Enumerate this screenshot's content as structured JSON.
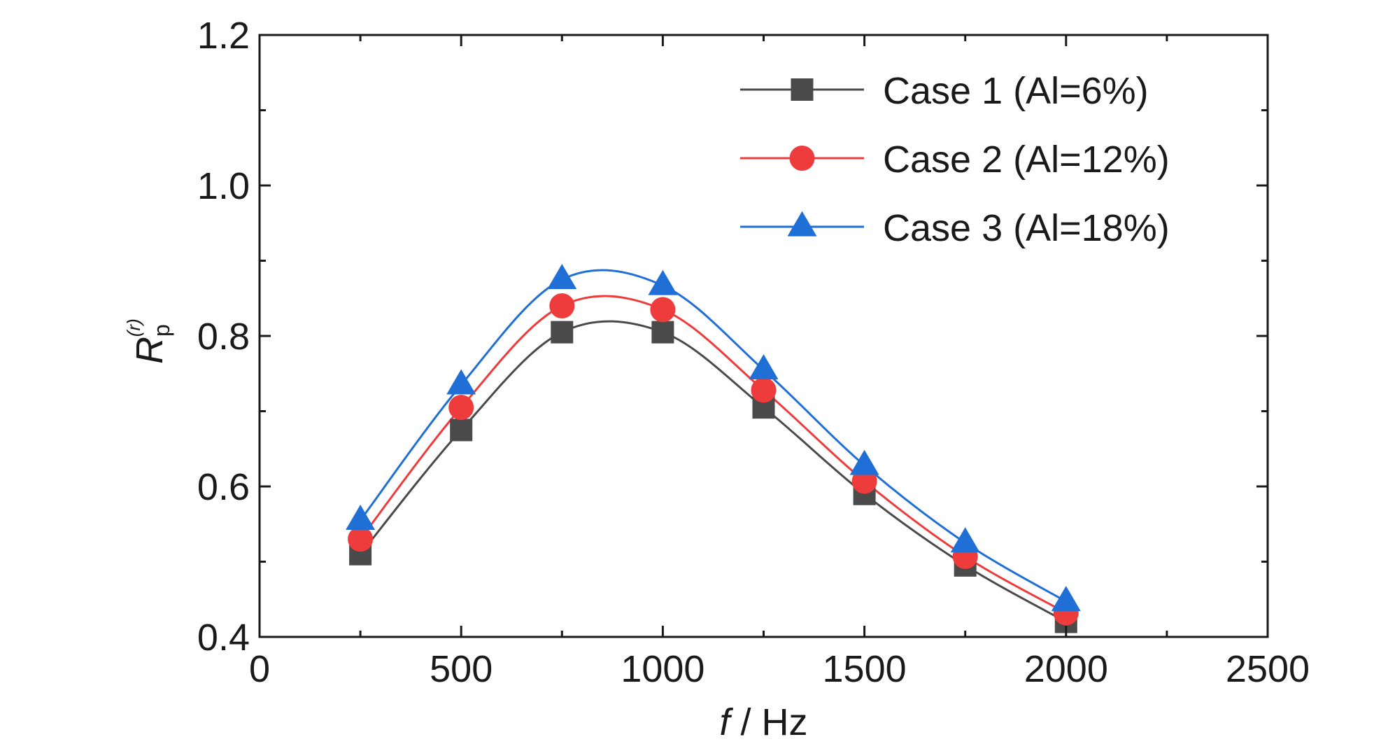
{
  "chart_data": {
    "type": "line",
    "title": "",
    "xlabel": {
      "var": "f",
      "unit": " / Hz"
    },
    "ylabel": {
      "main": "R",
      "sub": "p",
      "sup": "(r)"
    },
    "xlim": [
      0,
      2500
    ],
    "ylim": [
      0.4,
      1.2
    ],
    "xticks": [
      0,
      500,
      1000,
      1500,
      2000,
      2500
    ],
    "xtick_labels": [
      "0",
      "500",
      "1000",
      "1500",
      "2000",
      "2500"
    ],
    "yticks": [
      0.4,
      0.6,
      0.8,
      1.0,
      1.2
    ],
    "ytick_labels": [
      "0.4",
      "0.6",
      "0.8",
      "1.0",
      "1.2"
    ],
    "grid": false,
    "legend_position": "top-right",
    "x": [
      250,
      500,
      750,
      1000,
      1250,
      1500,
      1750,
      2000
    ],
    "series": [
      {
        "name": "Case 1 (Al=6%)",
        "marker": "square",
        "color": "#4a4a4a",
        "values": [
          0.51,
          0.675,
          0.805,
          0.805,
          0.705,
          0.59,
          0.495,
          0.42
        ]
      },
      {
        "name": "Case 2 (Al=12%)",
        "marker": "circle",
        "color": "#ee3b3b",
        "values": [
          0.53,
          0.705,
          0.84,
          0.835,
          0.728,
          0.607,
          0.507,
          0.432
        ]
      },
      {
        "name": "Case 3 (Al=18%)",
        "marker": "triangle",
        "color": "#1f6fd6",
        "values": [
          0.555,
          0.735,
          0.875,
          0.867,
          0.755,
          0.628,
          0.525,
          0.447
        ]
      }
    ]
  }
}
